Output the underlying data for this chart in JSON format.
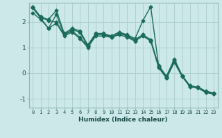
{
  "title": "",
  "xlabel": "Humidex (Indice chaleur)",
  "ylabel": "",
  "bg_color": "#cce8e8",
  "grid_color": "#b0d0d0",
  "line_color": "#1a6b5a",
  "marker": "D",
  "markersize": 2.5,
  "linewidth": 1.0,
  "xlim": [
    -0.5,
    23.5
  ],
  "ylim": [
    -1.35,
    2.75
  ],
  "yticks": [
    -1,
    0,
    1,
    2
  ],
  "xticks": [
    0,
    1,
    2,
    3,
    4,
    5,
    6,
    7,
    8,
    9,
    10,
    11,
    12,
    13,
    14,
    15,
    16,
    17,
    18,
    19,
    20,
    21,
    22,
    23
  ],
  "series": [
    [
      2.6,
      2.2,
      2.1,
      2.45,
      1.55,
      1.75,
      1.65,
      1.1,
      1.55,
      1.55,
      1.45,
      1.6,
      1.5,
      1.35,
      2.05,
      2.6,
      0.3,
      -0.12,
      0.55,
      -0.1,
      -0.5,
      -0.55,
      -0.7,
      -0.78
    ],
    [
      2.55,
      2.18,
      2.05,
      2.0,
      1.5,
      1.7,
      1.6,
      1.05,
      1.5,
      1.5,
      1.4,
      1.55,
      1.45,
      1.3,
      1.5,
      1.3,
      0.28,
      -0.15,
      0.5,
      -0.1,
      -0.5,
      -0.55,
      -0.72,
      -0.78
    ],
    [
      2.55,
      2.15,
      1.75,
      2.3,
      1.5,
      1.65,
      1.4,
      1.05,
      1.5,
      1.5,
      1.45,
      1.6,
      1.45,
      1.3,
      1.5,
      1.3,
      0.25,
      -0.18,
      0.45,
      -0.12,
      -0.52,
      -0.57,
      -0.74,
      -0.8
    ],
    [
      2.35,
      2.1,
      1.75,
      1.95,
      1.45,
      1.6,
      1.35,
      1.0,
      1.45,
      1.45,
      1.4,
      1.5,
      1.4,
      1.25,
      1.45,
      1.25,
      0.22,
      -0.2,
      0.42,
      -0.14,
      -0.54,
      -0.58,
      -0.76,
      -0.82
    ]
  ]
}
